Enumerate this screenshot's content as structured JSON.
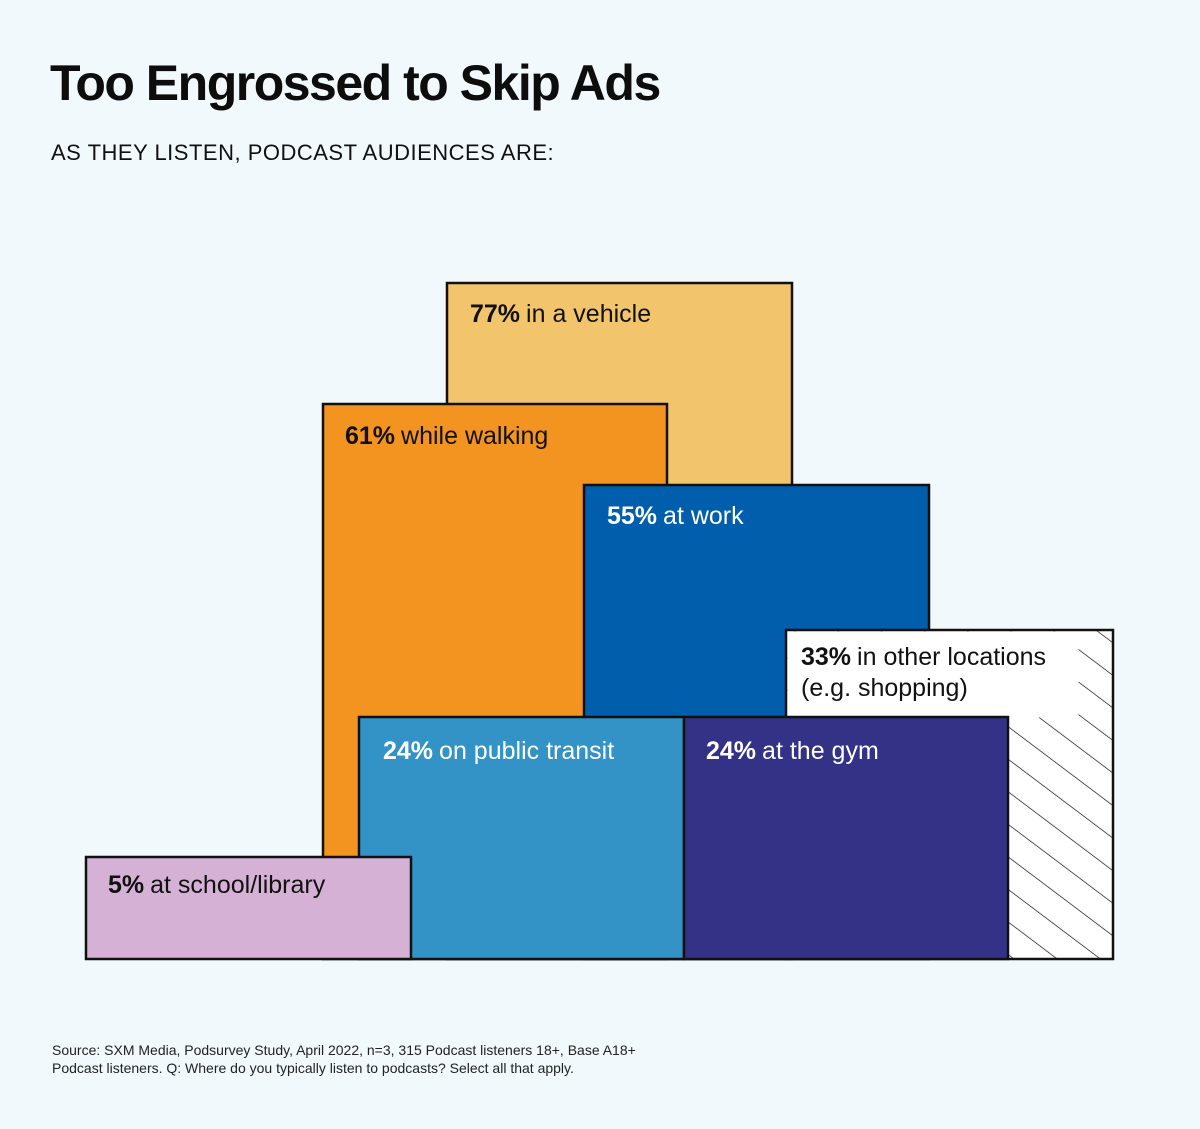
{
  "title": "Too Engrossed to Skip Ads",
  "subtitle": "AS THEY LISTEN, PODCAST AUDIENCES ARE:",
  "source": "Source: SXM Media, Podsurvey Study, April 2022, n=3, 315 Podcast listeners 18+, Base A18+ Podcast listeners. Q: Where do you typically listen to podcasts? Select all that apply.",
  "chart_data": {
    "type": "bar",
    "title": "Too Engrossed to Skip Ads",
    "subtitle": "AS THEY LISTEN, PODCAST AUDIENCES ARE:",
    "unit": "%",
    "categories": [
      "in a vehicle",
      "while walking",
      "at work",
      "in other locations (e.g. shopping)",
      "on public transit",
      "at the gym",
      "at school/library"
    ],
    "values": [
      77,
      61,
      55,
      33,
      24,
      24,
      5
    ],
    "items": [
      {
        "id": "vehicle",
        "value": 77,
        "pct": "77%",
        "lines": [
          "in a vehicle"
        ],
        "color": "#f2c46b",
        "text_color": "#111111"
      },
      {
        "id": "walking",
        "value": 61,
        "pct": "61%",
        "lines": [
          "while walking"
        ],
        "color": "#f39420",
        "text_color": "#111111"
      },
      {
        "id": "work",
        "value": 55,
        "pct": "55%",
        "lines": [
          "at work"
        ],
        "color": "#005ead",
        "text_color": "#ffffff"
      },
      {
        "id": "other",
        "value": 33,
        "pct": "33%",
        "lines": [
          "in other locations",
          "(e.g. shopping)"
        ],
        "color": "#ffffff",
        "pattern": "diagonal-hatch",
        "text_color": "#111111"
      },
      {
        "id": "transit",
        "value": 24,
        "pct": "24%",
        "lines": [
          "on public transit"
        ],
        "color": "#3392c6",
        "text_color": "#ffffff"
      },
      {
        "id": "gym",
        "value": 24,
        "pct": "24%",
        "lines": [
          "at the gym"
        ],
        "color": "#333287",
        "text_color": "#ffffff"
      },
      {
        "id": "school",
        "value": 5,
        "pct": "5%",
        "lines": [
          "at school/library"
        ],
        "color": "#d5b2d5",
        "text_color": "#111111"
      }
    ],
    "stroke_color": "#111111",
    "background": "#f2f9fc"
  }
}
